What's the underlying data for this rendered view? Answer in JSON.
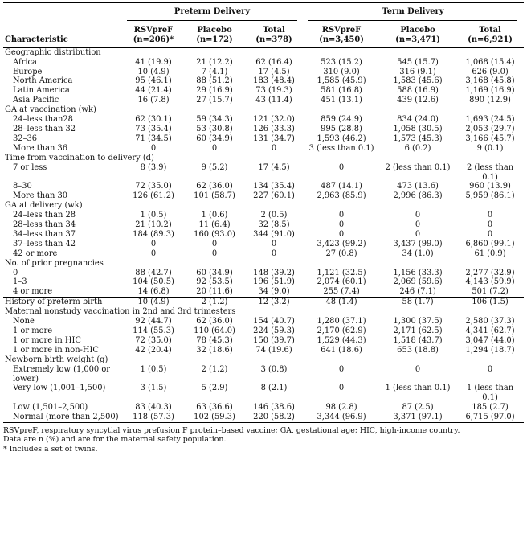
{
  "groups": {
    "preterm": "Preterm Delivery",
    "term": "Term Delivery"
  },
  "headers": {
    "characteristic": "Characteristic",
    "cols": [
      [
        "RSVpreF",
        "(n=206)*"
      ],
      [
        "Placebo",
        "(n=172)"
      ],
      [
        "Total",
        "(n=378)"
      ],
      [
        "RSVpreF",
        "(n=3,450)"
      ],
      [
        "Placebo",
        "(n=3,471)"
      ],
      [
        "Total",
        "(n=6,921)"
      ]
    ]
  },
  "rows": [
    {
      "label": "Geographic distribution",
      "section": true
    },
    {
      "label": "Africa",
      "values": [
        "41 (19.9)",
        "21 (12.2)",
        "62 (16.4)",
        "523 (15.2)",
        "545 (15.7)",
        "1,068 (15.4)"
      ]
    },
    {
      "label": "Europe",
      "values": [
        "10 (4.9)",
        "7 (4.1)",
        "17 (4.5)",
        "310 (9.0)",
        "316 (9.1)",
        "626 (9.0)"
      ]
    },
    {
      "label": "North America",
      "values": [
        "95 (46.1)",
        "88 (51.2)",
        "183 (48.4)",
        "1,585 (45.9)",
        "1,583 (45.6)",
        "3,168 (45.8)"
      ]
    },
    {
      "label": "Latin America",
      "values": [
        "44 (21.4)",
        "29 (16.9)",
        "73 (19.3)",
        "581 (16.8)",
        "588 (16.9)",
        "1,169 (16.9)"
      ]
    },
    {
      "label": "Asia Pacific",
      "values": [
        "16 (7.8)",
        "27 (15.7)",
        "43 (11.4)",
        "451 (13.1)",
        "439 (12.6)",
        "890 (12.9)"
      ]
    },
    {
      "label": "GA at vaccination (wk)",
      "section": true
    },
    {
      "label": "24–less than28",
      "values": [
        "62 (30.1)",
        "59 (34.3)",
        "121 (32.0)",
        "859 (24.9)",
        "834 (24.0)",
        "1,693 (24.5)"
      ]
    },
    {
      "label": "28–less than 32",
      "values": [
        "73 (35.4)",
        "53 (30.8)",
        "126 (33.3)",
        "995 (28.8)",
        "1,058 (30.5)",
        "2,053 (29.7)"
      ]
    },
    {
      "label": "32–36",
      "values": [
        "71 (34.5)",
        "60 (34.9)",
        "131 (34.7)",
        "1,593 (46.2)",
        "1,573 (45.3)",
        "3,166 (45.7)"
      ]
    },
    {
      "label": "More than 36",
      "values": [
        "0",
        "0",
        "0",
        "3 (less than 0.1)",
        "6 (0.2)",
        "9 (0.1)"
      ]
    },
    {
      "label": "Time from vaccination to delivery (d)",
      "section": true
    },
    {
      "label": "7 or less",
      "values": [
        "8 (3.9)",
        "9 (5.2)",
        "17 (4.5)",
        "0",
        "2 (less than 0.1)",
        "2 (less than 0.1)"
      ]
    },
    {
      "label": "8–30",
      "values": [
        "72 (35.0)",
        "62 (36.0)",
        "134 (35.4)",
        "487 (14.1)",
        "473 (13.6)",
        "960 (13.9)"
      ]
    },
    {
      "label": "More than 30",
      "values": [
        "126 (61.2)",
        "101 (58.7)",
        "227 (60.1)",
        "2,963 (85.9)",
        "2,996 (86.3)",
        "5,959 (86.1)"
      ]
    },
    {
      "label": "GA at delivery (wk)",
      "section": true
    },
    {
      "label": "24–less than 28",
      "values": [
        "1 (0.5)",
        "1 (0.6)",
        "2 (0.5)",
        "0",
        "0",
        "0"
      ]
    },
    {
      "label": "28–less than 34",
      "values": [
        "21 (10.2)",
        "11 (6.4)",
        "32 (8.5)",
        "0",
        "0",
        "0"
      ]
    },
    {
      "label": "34–less than 37",
      "values": [
        "184 (89.3)",
        "160 (93.0)",
        "344 (91.0)",
        "0",
        "0",
        "0"
      ]
    },
    {
      "label": "37–less than 42",
      "values": [
        "0",
        "0",
        "0",
        "3,423 (99.2)",
        "3,437 (99.0)",
        "6,860 (99.1)"
      ]
    },
    {
      "label": "42 or more",
      "values": [
        "0",
        "0",
        "0",
        "27 (0.8)",
        "34 (1.0)",
        "61 (0.9)"
      ]
    },
    {
      "label": "No. of prior pregnancies",
      "section": true
    },
    {
      "label": "0",
      "values": [
        "88 (42.7)",
        "60 (34.9)",
        "148 (39.2)",
        "1,121 (32.5)",
        "1,156 (33.3)",
        "2,277 (32.9)"
      ]
    },
    {
      "label": "1–3",
      "values": [
        "104 (50.5)",
        "92 (53.5)",
        "196 (51.9)",
        "2,074 (60.1)",
        "2,069 (59.6)",
        "4,143 (59.9)"
      ]
    },
    {
      "label": "4 or more",
      "values": [
        "14 (6.8)",
        "20 (11.6)",
        "34 (9.0)",
        "255 (7.4)",
        "246 (7.1)",
        "501 (7.2)"
      ]
    },
    {
      "label": "History of preterm birth",
      "top": true,
      "values": [
        "10 (4.9)",
        "2 (1.2)",
        "12 (3.2)",
        "48 (1.4)",
        "58 (1.7)",
        "106 (1.5)"
      ]
    },
    {
      "label": "Maternal nonstudy vaccination in 2nd and 3rd trimesters",
      "section": true
    },
    {
      "label": "None",
      "values": [
        "92 (44.7)",
        "62 (36.0)",
        "154 (40.7)",
        "1,280 (37.1)",
        "1,300 (37.5)",
        "2,580 (37.3)"
      ]
    },
    {
      "label": "1 or more",
      "values": [
        "114 (55.3)",
        "110 (64.0)",
        "224 (59.3)",
        "2,170 (62.9)",
        "2,171 (62.5)",
        "4,341 (62.7)"
      ]
    },
    {
      "label": "1 or more in HIC",
      "values": [
        "72 (35.0)",
        "78 (45.3)",
        "150 (39.7)",
        "1,529 (44.3)",
        "1,518 (43.7)",
        "3,047 (44.0)"
      ]
    },
    {
      "label": "1 or more in non-HIC",
      "values": [
        "42 (20.4)",
        "32 (18.6)",
        "74 (19.6)",
        "641 (18.6)",
        "653 (18.8)",
        "1,294 (18.7)"
      ]
    },
    {
      "label": "Newborn birth weight (g)",
      "section": true
    },
    {
      "label": "Extremely low (1,000 or lower)",
      "values": [
        "1 (0.5)",
        "2 (1.2)",
        "3 (0.8)",
        "0",
        "0",
        "0"
      ]
    },
    {
      "label": "Very low (1,001–1,500)",
      "values": [
        "3 (1.5)",
        "5 (2.9)",
        "8 (2.1)",
        "0",
        "1 (less than 0.1)",
        "1 (less than 0.1)"
      ]
    },
    {
      "label": "Low (1,501–2,500)",
      "values": [
        "83 (40.3)",
        "63 (36.6)",
        "146 (38.6)",
        "98 (2.8)",
        "87 (2.5)",
        "185 (2.7)"
      ]
    },
    {
      "label": "Normal (more than 2,500)",
      "values": [
        "118 (57.3)",
        "102 (59.3)",
        "220 (58.2)",
        "3,344 (96.9)",
        "3,371 (97.1)",
        "6,715 (97.0)"
      ]
    }
  ],
  "footnotes": [
    "RSVpreF, respiratory syncytial virus prefusion F protein–based vaccine; GA, gestational age; HIC, high-income country.",
    "Data are n (%) and are for the maternal safety population.",
    "* Includes a set of twins."
  ]
}
